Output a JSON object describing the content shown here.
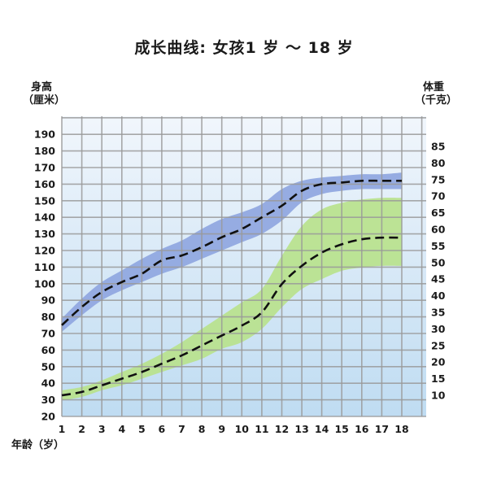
{
  "chart_data": {
    "type": "line",
    "title": "成长曲线: 女孩1 岁 ～ 18 岁",
    "xlabel": "年龄（岁）",
    "x_unit_label": "年龄（岁）",
    "ylabel_left": "身高",
    "ylabel_left_unit": "（厘米）",
    "ylabel_right": "体重",
    "ylabel_right_unit": "（千克）",
    "x": [
      1,
      2,
      3,
      4,
      5,
      6,
      7,
      8,
      9,
      10,
      11,
      12,
      13,
      14,
      15,
      16,
      17,
      18
    ],
    "xlim": [
      1,
      18
    ],
    "ylim_left": [
      20,
      190
    ],
    "ylim_right": [
      10,
      85
    ],
    "left_ticks": [
      20,
      30,
      40,
      50,
      60,
      70,
      80,
      90,
      100,
      110,
      120,
      130,
      140,
      150,
      160,
      170,
      180,
      190
    ],
    "right_ticks": [
      10,
      15,
      20,
      25,
      30,
      35,
      40,
      45,
      50,
      55,
      60,
      65,
      70,
      75,
      80,
      85
    ],
    "grid": true,
    "series": [
      {
        "axis": "left",
        "color": "#8fa6e0",
        "median": [
          75,
          86,
          95,
          101,
          106,
          114,
          117,
          122,
          128,
          133,
          140,
          147,
          156,
          160,
          161,
          162,
          162,
          162
        ],
        "upper": [
          79,
          91,
          101,
          108,
          115,
          121,
          126,
          133,
          139,
          143,
          148,
          157,
          162,
          164,
          165,
          166,
          166,
          167
        ],
        "lower": [
          71,
          81,
          90,
          96,
          101,
          106,
          110,
          115,
          120,
          125,
          130,
          138,
          149,
          154,
          156,
          157,
          157,
          157
        ]
      },
      {
        "axis": "right",
        "color": "#b9e28c",
        "median": [
          10.0,
          11.0,
          13.0,
          15.0,
          17.0,
          19.5,
          22.0,
          25.0,
          28.0,
          31.0,
          35.0,
          43.5,
          49.0,
          53.0,
          55.5,
          57.0,
          57.5,
          57.5
        ],
        "upper": [
          11.5,
          12.5,
          14.5,
          17.0,
          19.5,
          22.5,
          26.0,
          30.0,
          34.0,
          38.0,
          42.0,
          52.0,
          61.0,
          66.0,
          68.0,
          69.0,
          69.5,
          69.5
        ],
        "lower": [
          8.5,
          9.5,
          11.5,
          13.0,
          15.0,
          17.0,
          19.0,
          21.0,
          24.0,
          26.0,
          30.0,
          36.5,
          42.0,
          45.0,
          47.5,
          48.5,
          49.0,
          49.0
        ]
      }
    ],
    "colors": {
      "plot_background_top": "#f1f6fc",
      "plot_background_bottom": "#bfdcf2",
      "grid": "#9a9a9a",
      "median_line": "#111111"
    }
  }
}
